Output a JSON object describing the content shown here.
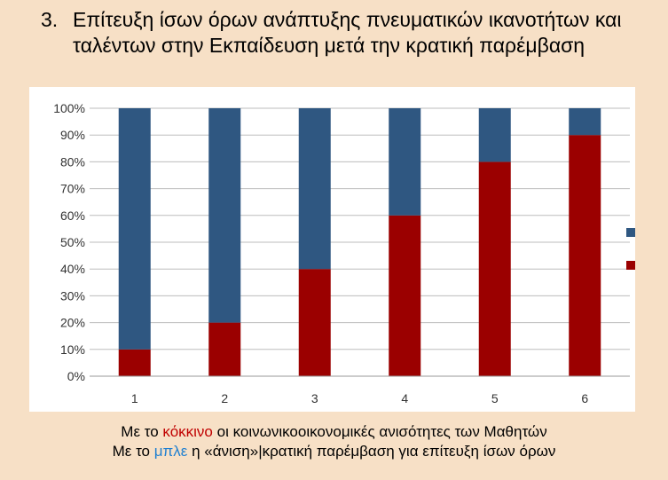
{
  "title": {
    "number": "3.",
    "text": "Επίτευξη ίσων όρων ανάπτυξης πνευματικών ικανοτήτων και ταλέντων στην Εκπαίδευση μετά την κρατική παρέμβαση"
  },
  "colors": {
    "blue": "#2f5781",
    "red": "#9b0000",
    "background": "#f7e0c6"
  },
  "caption": {
    "line1": {
      "prefix": "Με το ",
      "keyword": "κόκκινο",
      "suffix": " οι κοινωνικοοικονομικές ανισότητες των Μαθητών"
    },
    "line2": {
      "prefix": "Με το ",
      "keyword": "μπλε",
      "suffix": " η «άνιση»|κρατική παρέμβαση για επίτευξη ίσων όρων"
    }
  },
  "chart_data": {
    "type": "bar",
    "stacked": true,
    "categories": [
      "1",
      "2",
      "3",
      "4",
      "5",
      "6"
    ],
    "series": [
      {
        "values": [
          10,
          20,
          40,
          60,
          80,
          90
        ],
        "color": "#9b0000"
      },
      {
        "values": [
          90,
          80,
          60,
          40,
          20,
          10
        ],
        "color": "#2f5781"
      }
    ],
    "ylim": [
      0,
      100
    ],
    "yticks": [
      "0%",
      "10%",
      "20%",
      "30%",
      "40%",
      "50%",
      "60%",
      "70%",
      "80%",
      "90%",
      "100%"
    ],
    "grid": true,
    "legend": "right"
  }
}
